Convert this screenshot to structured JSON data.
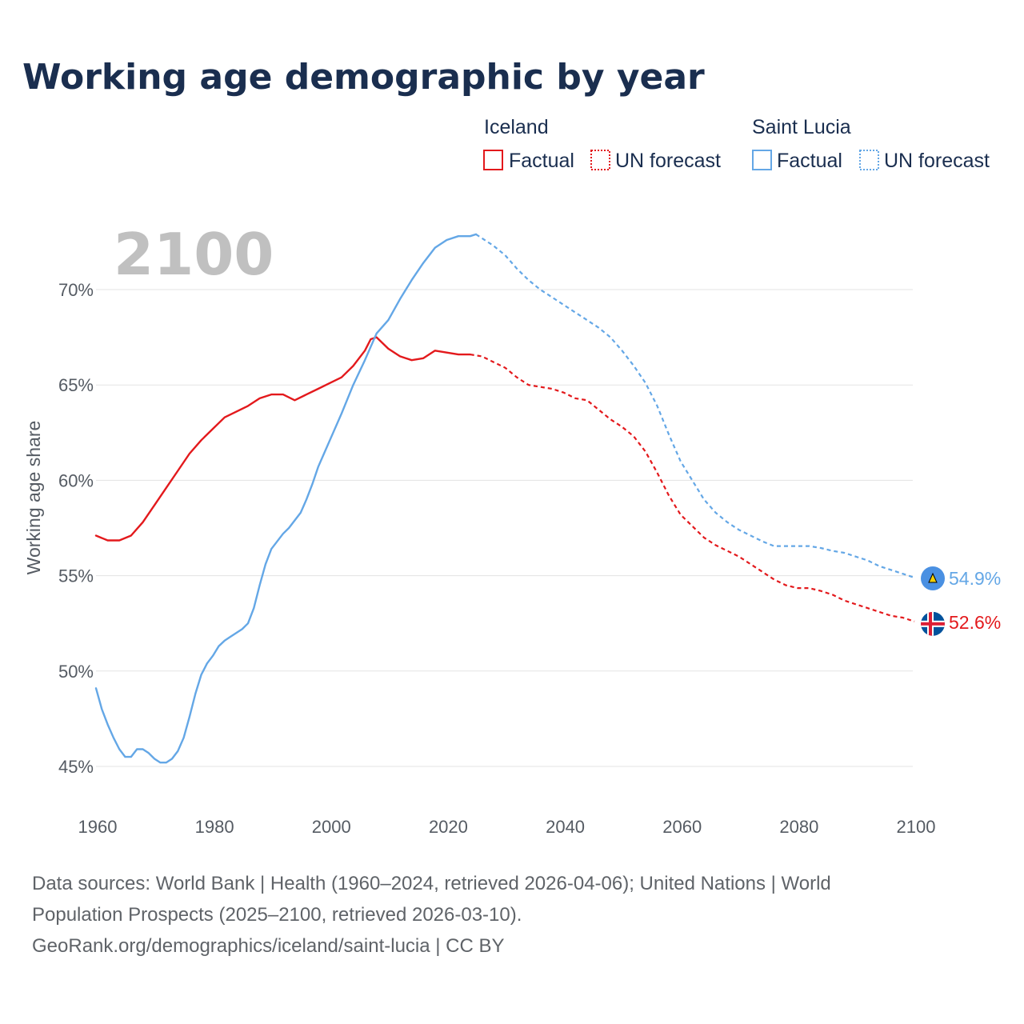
{
  "header": {
    "title": "Working age demographic by year"
  },
  "legend": {
    "groups": [
      {
        "name": "Iceland",
        "color": "#e3191c",
        "factual_label": "Factual",
        "forecast_label": "UN forecast"
      },
      {
        "name": "Saint Lucia",
        "color": "#64a7e6",
        "factual_label": "Factual",
        "forecast_label": "UN forecast"
      }
    ]
  },
  "year_display": "2100",
  "end_labels": {
    "saint_lucia": "54.9%",
    "iceland": "52.6%"
  },
  "footer": {
    "line1": "Data sources: World Bank | Health (1960–2024, retrieved 2026-04-06); United Nations | World",
    "line2": "Population Prospects (2025–2100, retrieved 2026-03-10).",
    "line3": "GeoRank.org/demographics/iceland/saint-lucia | CC BY"
  },
  "chart_data": {
    "type": "line",
    "title": "Working age demographic by year",
    "xlabel": "",
    "ylabel": "Working age share",
    "xlim": [
      1960,
      2100
    ],
    "ylim": [
      45,
      73
    ],
    "x_ticks": [
      1960,
      1980,
      2000,
      2020,
      2040,
      2060,
      2080,
      2100
    ],
    "x_tick_labels": [
      "1960",
      "1980",
      "2000",
      "2020",
      "2040",
      "2060",
      "2080",
      "2100"
    ],
    "y_ticks": [
      45,
      50,
      55,
      60,
      65,
      70
    ],
    "y_tick_labels": [
      "45%",
      "50%",
      "55%",
      "60%",
      "65%",
      "70%"
    ],
    "grid": true,
    "series": [
      {
        "name": "Iceland",
        "color": "#e3191c",
        "factual": [
          [
            1960,
            57.1
          ],
          [
            1962,
            56.85
          ],
          [
            1964,
            56.85
          ],
          [
            1966,
            57.1
          ],
          [
            1968,
            57.8
          ],
          [
            1970,
            58.7
          ],
          [
            1972,
            59.6
          ],
          [
            1974,
            60.5
          ],
          [
            1976,
            61.4
          ],
          [
            1978,
            62.1
          ],
          [
            1980,
            62.7
          ],
          [
            1982,
            63.3
          ],
          [
            1984,
            63.6
          ],
          [
            1986,
            63.9
          ],
          [
            1988,
            64.3
          ],
          [
            1990,
            64.5
          ],
          [
            1992,
            64.5
          ],
          [
            1994,
            64.2
          ],
          [
            1996,
            64.5
          ],
          [
            1998,
            64.8
          ],
          [
            2000,
            65.1
          ],
          [
            2002,
            65.4
          ],
          [
            2004,
            66.0
          ],
          [
            2006,
            66.8
          ],
          [
            2007,
            67.4
          ],
          [
            2008,
            67.5
          ],
          [
            2010,
            66.9
          ],
          [
            2012,
            66.5
          ],
          [
            2014,
            66.3
          ],
          [
            2016,
            66.4
          ],
          [
            2018,
            66.8
          ],
          [
            2020,
            66.7
          ],
          [
            2022,
            66.6
          ],
          [
            2024,
            66.6
          ]
        ],
        "forecast": [
          [
            2024,
            66.6
          ],
          [
            2026,
            66.5
          ],
          [
            2028,
            66.2
          ],
          [
            2030,
            65.9
          ],
          [
            2032,
            65.4
          ],
          [
            2034,
            65.0
          ],
          [
            2036,
            64.9
          ],
          [
            2038,
            64.8
          ],
          [
            2040,
            64.6
          ],
          [
            2042,
            64.3
          ],
          [
            2044,
            64.2
          ],
          [
            2046,
            63.7
          ],
          [
            2048,
            63.2
          ],
          [
            2050,
            62.8
          ],
          [
            2052,
            62.3
          ],
          [
            2054,
            61.5
          ],
          [
            2056,
            60.4
          ],
          [
            2058,
            59.2
          ],
          [
            2060,
            58.2
          ],
          [
            2062,
            57.6
          ],
          [
            2064,
            57.0
          ],
          [
            2066,
            56.6
          ],
          [
            2068,
            56.3
          ],
          [
            2070,
            56.0
          ],
          [
            2072,
            55.6
          ],
          [
            2074,
            55.2
          ],
          [
            2076,
            54.8
          ],
          [
            2078,
            54.5
          ],
          [
            2080,
            54.35
          ],
          [
            2082,
            54.35
          ],
          [
            2084,
            54.2
          ],
          [
            2086,
            54.0
          ],
          [
            2088,
            53.7
          ],
          [
            2090,
            53.5
          ],
          [
            2092,
            53.3
          ],
          [
            2094,
            53.1
          ],
          [
            2096,
            52.9
          ],
          [
            2098,
            52.8
          ],
          [
            2100,
            52.6
          ]
        ],
        "end_value": 52.6
      },
      {
        "name": "Saint Lucia",
        "color": "#64a7e6",
        "factual": [
          [
            1960,
            49.1
          ],
          [
            1961,
            48.0
          ],
          [
            1962,
            47.2
          ],
          [
            1963,
            46.5
          ],
          [
            1964,
            45.9
          ],
          [
            1965,
            45.5
          ],
          [
            1966,
            45.5
          ],
          [
            1967,
            45.9
          ],
          [
            1968,
            45.9
          ],
          [
            1969,
            45.7
          ],
          [
            1970,
            45.4
          ],
          [
            1971,
            45.2
          ],
          [
            1972,
            45.2
          ],
          [
            1973,
            45.4
          ],
          [
            1974,
            45.8
          ],
          [
            1975,
            46.5
          ],
          [
            1976,
            47.6
          ],
          [
            1977,
            48.8
          ],
          [
            1978,
            49.8
          ],
          [
            1979,
            50.4
          ],
          [
            1980,
            50.8
          ],
          [
            1981,
            51.3
          ],
          [
            1982,
            51.6
          ],
          [
            1983,
            51.8
          ],
          [
            1984,
            52.0
          ],
          [
            1985,
            52.2
          ],
          [
            1986,
            52.5
          ],
          [
            1987,
            53.3
          ],
          [
            1988,
            54.5
          ],
          [
            1989,
            55.6
          ],
          [
            1990,
            56.4
          ],
          [
            1991,
            56.8
          ],
          [
            1992,
            57.2
          ],
          [
            1993,
            57.5
          ],
          [
            1994,
            57.9
          ],
          [
            1995,
            58.3
          ],
          [
            1996,
            59.0
          ],
          [
            1997,
            59.8
          ],
          [
            1998,
            60.7
          ],
          [
            1999,
            61.4
          ],
          [
            2000,
            62.1
          ],
          [
            2002,
            63.5
          ],
          [
            2004,
            65.0
          ],
          [
            2006,
            66.3
          ],
          [
            2008,
            67.7
          ],
          [
            2010,
            68.4
          ],
          [
            2012,
            69.5
          ],
          [
            2014,
            70.5
          ],
          [
            2016,
            71.4
          ],
          [
            2018,
            72.2
          ],
          [
            2020,
            72.6
          ],
          [
            2022,
            72.8
          ],
          [
            2024,
            72.8
          ],
          [
            2025,
            72.9
          ]
        ],
        "forecast": [
          [
            2025,
            72.9
          ],
          [
            2028,
            72.3
          ],
          [
            2030,
            71.8
          ],
          [
            2032,
            71.1
          ],
          [
            2034,
            70.5
          ],
          [
            2036,
            70.0
          ],
          [
            2038,
            69.6
          ],
          [
            2040,
            69.2
          ],
          [
            2042,
            68.8
          ],
          [
            2044,
            68.4
          ],
          [
            2046,
            68.0
          ],
          [
            2048,
            67.5
          ],
          [
            2050,
            66.8
          ],
          [
            2052,
            66.0
          ],
          [
            2054,
            65.1
          ],
          [
            2056,
            63.9
          ],
          [
            2058,
            62.4
          ],
          [
            2060,
            61.0
          ],
          [
            2062,
            60.0
          ],
          [
            2064,
            59.0
          ],
          [
            2066,
            58.3
          ],
          [
            2068,
            57.8
          ],
          [
            2070,
            57.4
          ],
          [
            2072,
            57.1
          ],
          [
            2074,
            56.8
          ],
          [
            2076,
            56.55
          ],
          [
            2080,
            56.55
          ],
          [
            2082,
            56.55
          ],
          [
            2084,
            56.45
          ],
          [
            2086,
            56.3
          ],
          [
            2088,
            56.2
          ],
          [
            2090,
            56.0
          ],
          [
            2092,
            55.8
          ],
          [
            2094,
            55.5
          ],
          [
            2096,
            55.3
          ],
          [
            2098,
            55.1
          ],
          [
            2100,
            54.9
          ]
        ],
        "end_value": 54.9
      }
    ]
  }
}
